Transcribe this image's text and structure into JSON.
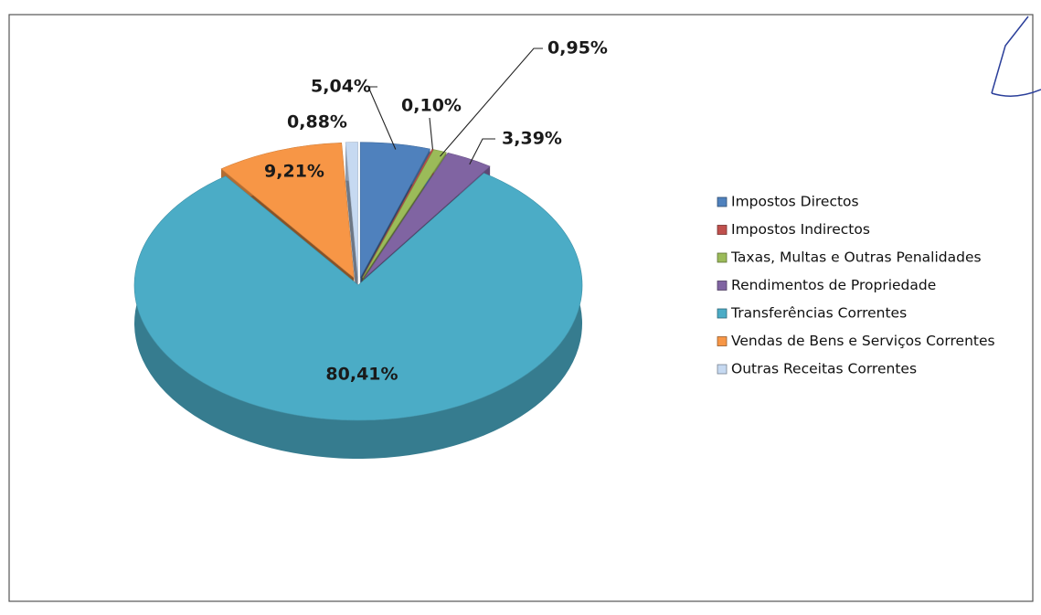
{
  "chart_data": {
    "type": "pie",
    "categories": [
      "Impostos Directos",
      "Impostos Indirectos",
      "Taxas, Multas e Outras Penalidades",
      "Rendimentos de Propriedade",
      "Transferências Correntes",
      "Vendas de Bens e Serviços Correntes",
      "Outras Receitas Correntes"
    ],
    "values": [
      5.04,
      0.1,
      0.95,
      3.39,
      80.41,
      9.21,
      0.88
    ],
    "value_labels": [
      "5,04%",
      "0,10%",
      "0,95%",
      "3,39%",
      "80,41%",
      "9,21%",
      "0,88%"
    ],
    "colors": [
      "#4f81bd",
      "#c0504d",
      "#9bbb59",
      "#8064a2",
      "#4bacc6",
      "#f79646",
      "#c6d9f1"
    ],
    "legend": "right"
  }
}
